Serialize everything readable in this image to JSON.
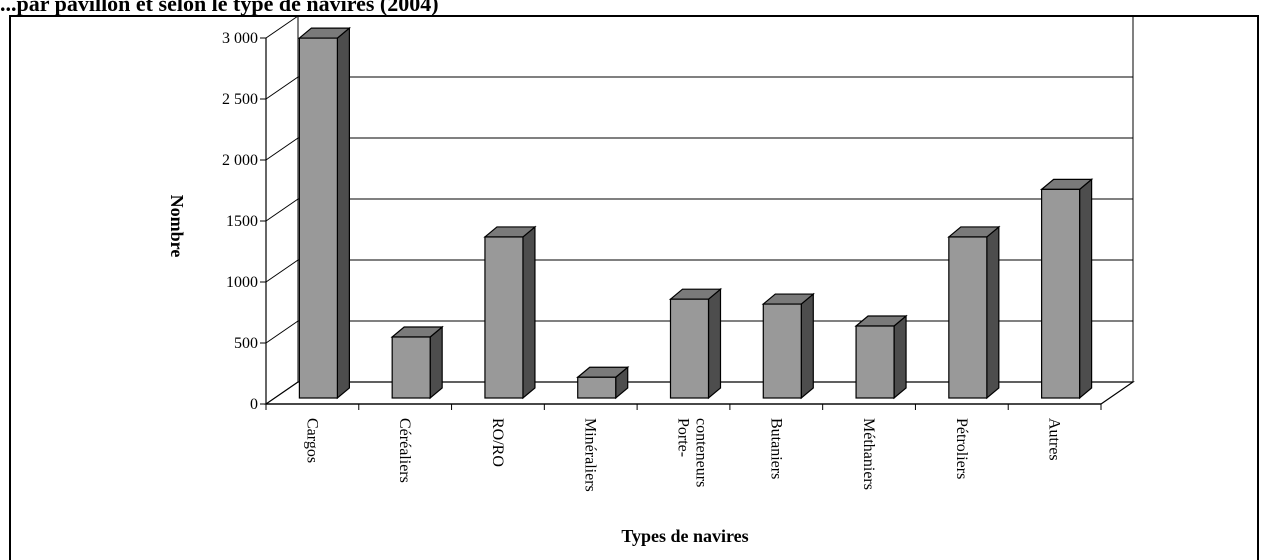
{
  "page": {
    "title": "...par pavillon et selon le type de navires (2004)"
  },
  "chart_data": {
    "type": "bar",
    "title": "",
    "xlabel": "Types de navires",
    "ylabel": "Nombre",
    "categories": [
      "Cargos",
      "Céréaliers",
      "RO/RO",
      "Minéraliers",
      "Porte-\nconteneurs",
      "Butaniers",
      "Méthaniers",
      "Pétroliers",
      "Autres"
    ],
    "values": [
      2950,
      500,
      1320,
      170,
      810,
      770,
      590,
      1320,
      1710
    ],
    "ylim": [
      0,
      3000
    ],
    "yticks": [
      0,
      500,
      1000,
      1500,
      2000,
      2500,
      3000
    ],
    "ytick_labels": [
      "0",
      "500",
      "1000",
      "1500",
      "2 000",
      "2 500",
      "3 000"
    ],
    "grid": true,
    "legend": "none",
    "colors": {
      "bar_front": "#999999",
      "bar_top": "#7a7a7a",
      "bar_side": "#4d4d4d"
    }
  }
}
